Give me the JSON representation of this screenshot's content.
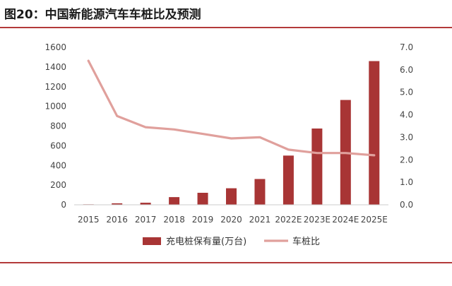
{
  "header": {
    "title": "图20：中国新能源汽车车桩比及预测"
  },
  "chart_data": {
    "type": "bar",
    "categories": [
      "2015",
      "2016",
      "2017",
      "2018",
      "2019",
      "2020",
      "2021",
      "2022E",
      "2023E",
      "2024E",
      "2025E"
    ],
    "series": [
      {
        "name": "充电桩保有量(万台)",
        "kind": "bar",
        "axis": "left",
        "values": [
          5,
          15,
          21,
          78,
          122,
          168,
          262,
          500,
          775,
          1065,
          1460
        ]
      },
      {
        "name": "车桩比",
        "kind": "line",
        "axis": "right",
        "values": [
          6.4,
          3.95,
          3.45,
          3.35,
          3.15,
          2.95,
          3.0,
          2.45,
          2.3,
          2.3,
          2.2
        ]
      }
    ],
    "y_left": {
      "min": 0,
      "max": 1600,
      "ticks": [
        "0",
        "200",
        "400",
        "600",
        "800",
        "1000",
        "1200",
        "1400",
        "1600"
      ]
    },
    "y_right": {
      "min": 0,
      "max": 7.0,
      "ticks": [
        "0.0",
        "1.0",
        "2.0",
        "3.0",
        "4.0",
        "5.0",
        "6.0",
        "7.0"
      ]
    },
    "grid": false,
    "legend": "bottom-center",
    "colors": {
      "bar": "#a83535",
      "line": "#e0a09c",
      "rule": "#b33a3a"
    }
  }
}
